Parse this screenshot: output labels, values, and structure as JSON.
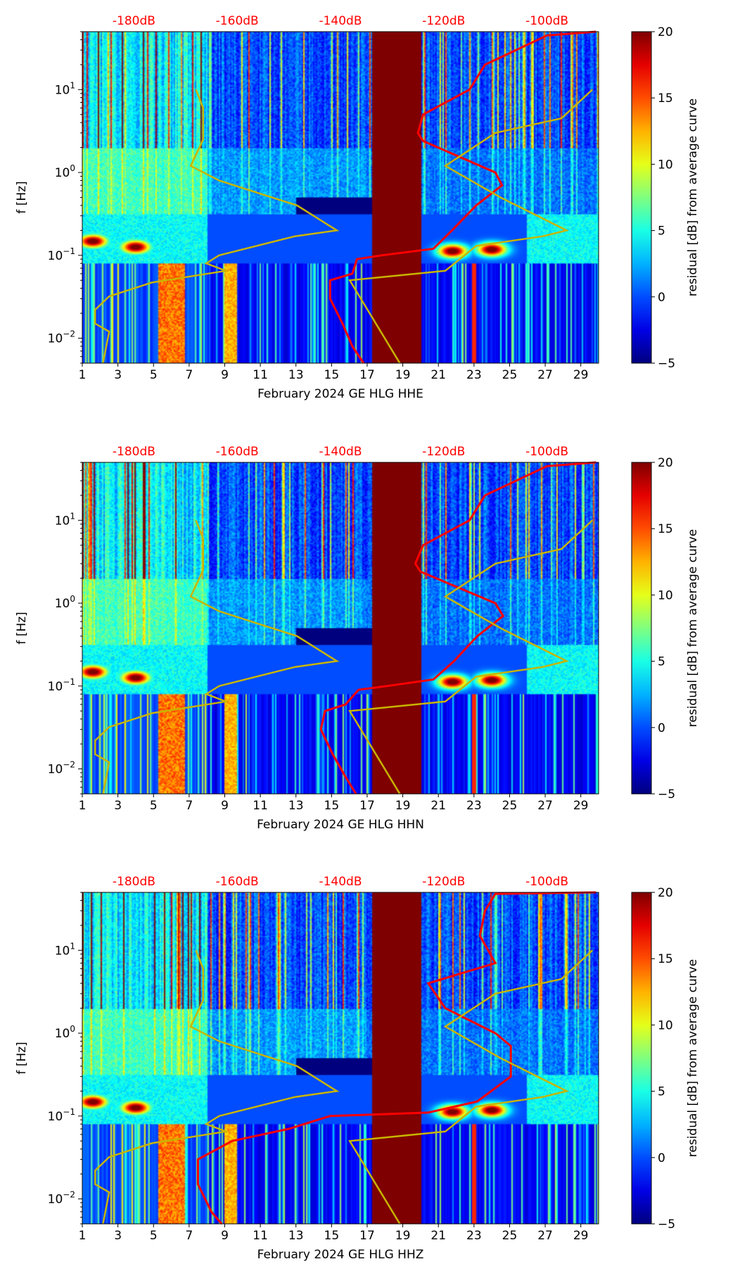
{
  "chart_data": [
    {
      "type": "heatmap",
      "title": "",
      "xlabel": "February 2024 GE HLG  HHE",
      "ylabel": "f [Hz]",
      "colorbar_label": "residual [dB] from average curve",
      "xlim": [
        1,
        30
      ],
      "ylim": [
        0.005,
        50
      ],
      "yscale": "log",
      "clim": [
        -5,
        20
      ],
      "colormap": "jet",
      "xticks": [
        "1",
        "3",
        "5",
        "7",
        "9",
        "11",
        "13",
        "15",
        "17",
        "19",
        "21",
        "23",
        "25",
        "27",
        "29"
      ],
      "yticks": [
        "10^-2",
        "10^-1",
        "10^0",
        "10^1"
      ],
      "colorbar_ticks": [
        "-5",
        "0",
        "5",
        "10",
        "15",
        "20"
      ],
      "top_axis": {
        "range": [
          -190,
          -90
        ],
        "ticks": [
          "-180dB",
          "-160dB",
          "-140dB",
          "-120dB",
          "-100dB"
        ],
        "color": "#ff0000"
      },
      "data_gap_days": [
        17.3,
        20.05
      ],
      "series": [
        {
          "name": "station PSD",
          "color": "#ff0000",
          "f": [
            0.005,
            0.008,
            0.015,
            0.03,
            0.05,
            0.06,
            0.09,
            0.1,
            0.12,
            0.2,
            0.4,
            0.7,
            1,
            2.4,
            3,
            5,
            10,
            20,
            45,
            50
          ],
          "dB": [
            -135.5,
            -137.7,
            -139.6,
            -142,
            -142,
            -137.7,
            -136.8,
            -132,
            -122,
            -118.4,
            -113.7,
            -108.7,
            -110,
            -124,
            -125,
            -124,
            -115,
            -112,
            -100,
            -90.5
          ]
        },
        {
          "name": "low noise model",
          "color": "#c8b400",
          "f": [
            0.005,
            0.012,
            0.015,
            0.022,
            0.032,
            0.047,
            0.065,
            0.08,
            0.1,
            0.17,
            0.2,
            0.4,
            0.8,
            1.2,
            2.5,
            6,
            10
          ],
          "dB": [
            -186,
            -184.8,
            -187.5,
            -187.5,
            -184.8,
            -176.5,
            -162.2,
            -166,
            -163.5,
            -148.8,
            -140.7,
            -148.4,
            -163.5,
            -169,
            -166.6,
            -166.6,
            -168
          ]
        },
        {
          "name": "high noise model",
          "color": "#c8b400",
          "f": [
            0.005,
            0.05,
            0.065,
            0.13,
            0.17,
            0.2,
            0.5,
            1.2,
            3,
            4.5,
            10
          ],
          "dB": [
            -128.5,
            -138.2,
            -119.7,
            -113.7,
            -100.8,
            -96.2,
            -109,
            -119.7,
            -110,
            -97.2,
            -91.2
          ]
        }
      ]
    },
    {
      "type": "heatmap",
      "title": "",
      "xlabel": "February 2024 GE HLG  HHN",
      "ylabel": "f [Hz]",
      "colorbar_label": "residual [dB] from average curve",
      "xlim": [
        1,
        30
      ],
      "ylim": [
        0.005,
        50
      ],
      "yscale": "log",
      "clim": [
        -5,
        20
      ],
      "colormap": "jet",
      "xticks": [
        "1",
        "3",
        "5",
        "7",
        "9",
        "11",
        "13",
        "15",
        "17",
        "19",
        "21",
        "23",
        "25",
        "27",
        "29"
      ],
      "yticks": [
        "10^-2",
        "10^-1",
        "10^0",
        "10^1"
      ],
      "colorbar_ticks": [
        "-5",
        "0",
        "5",
        "10",
        "15",
        "20"
      ],
      "top_axis": {
        "range": [
          -190,
          -90
        ],
        "ticks": [
          "-180dB",
          "-160dB",
          "-140dB",
          "-120dB",
          "-100dB"
        ],
        "color": "#ff0000"
      },
      "data_gap_days": [
        17.3,
        20.05
      ],
      "series": [
        {
          "name": "station PSD",
          "color": "#ff0000",
          "f": [
            0.005,
            0.008,
            0.015,
            0.03,
            0.05,
            0.06,
            0.09,
            0.1,
            0.12,
            0.2,
            0.4,
            0.7,
            1,
            2.4,
            3,
            5,
            10,
            20,
            45,
            50
          ],
          "dB": [
            -137,
            -139,
            -141.5,
            -143.8,
            -143,
            -139,
            -136.5,
            -131,
            -122,
            -118,
            -113.5,
            -108.5,
            -110,
            -124.5,
            -125.5,
            -124,
            -115,
            -112,
            -100,
            -90.5
          ]
        },
        {
          "name": "low noise model",
          "color": "#c8b400",
          "f": [
            0.005,
            0.012,
            0.015,
            0.022,
            0.032,
            0.047,
            0.065,
            0.08,
            0.1,
            0.17,
            0.2,
            0.4,
            0.8,
            1.2,
            2.5,
            6,
            10
          ],
          "dB": [
            -186,
            -184.8,
            -187.5,
            -187.5,
            -184.8,
            -176.5,
            -162.2,
            -166,
            -163.5,
            -148.8,
            -140.7,
            -148.4,
            -163.5,
            -169,
            -166.6,
            -166.6,
            -168
          ]
        },
        {
          "name": "high noise model",
          "color": "#c8b400",
          "f": [
            0.005,
            0.05,
            0.065,
            0.13,
            0.17,
            0.2,
            0.5,
            1.2,
            3,
            4.5,
            10
          ],
          "dB": [
            -128.5,
            -138.2,
            -119.7,
            -113.7,
            -100.8,
            -96.2,
            -109,
            -119.7,
            -110,
            -97.2,
            -91.2
          ]
        }
      ]
    },
    {
      "type": "heatmap",
      "title": "",
      "xlabel": "February 2024 GE HLG  HHZ",
      "ylabel": "f [Hz]",
      "colorbar_label": "residual [dB] from average curve",
      "xlim": [
        1,
        30
      ],
      "ylim": [
        0.005,
        50
      ],
      "yscale": "log",
      "clim": [
        -5,
        20
      ],
      "colormap": "jet",
      "xticks": [
        "1",
        "3",
        "5",
        "7",
        "9",
        "11",
        "13",
        "15",
        "17",
        "19",
        "21",
        "23",
        "25",
        "27",
        "29"
      ],
      "yticks": [
        "10^-2",
        "10^-1",
        "10^0",
        "10^1"
      ],
      "colorbar_ticks": [
        "-5",
        "0",
        "5",
        "10",
        "15",
        "20"
      ],
      "top_axis": {
        "range": [
          -190,
          -90
        ],
        "ticks": [
          "-180dB",
          "-160dB",
          "-140dB",
          "-120dB",
          "-100dB"
        ],
        "color": "#ff0000"
      },
      "data_gap_days": [
        17.3,
        20.05
      ],
      "series": [
        {
          "name": "station PSD",
          "color": "#ff0000",
          "f": [
            0.005,
            0.007,
            0.015,
            0.03,
            0.05,
            0.07,
            0.1,
            0.11,
            0.15,
            0.3,
            0.7,
            1,
            2,
            4,
            7,
            15,
            30,
            48,
            50
          ],
          "dB": [
            -163,
            -165,
            -167.6,
            -167.6,
            -161,
            -150,
            -142,
            -123,
            -113.5,
            -107,
            -107,
            -110,
            -119.7,
            -123,
            -110,
            -113,
            -112,
            -110,
            -90.5
          ]
        },
        {
          "name": "low noise model",
          "color": "#c8b400",
          "f": [
            0.005,
            0.012,
            0.015,
            0.022,
            0.032,
            0.047,
            0.065,
            0.08,
            0.1,
            0.17,
            0.2,
            0.4,
            0.8,
            1.2,
            2.5,
            6,
            10
          ],
          "dB": [
            -186,
            -184.8,
            -187.5,
            -187.5,
            -184.8,
            -176.5,
            -162.2,
            -166,
            -163.5,
            -148.8,
            -140.7,
            -148.4,
            -163.5,
            -169,
            -166.6,
            -166.6,
            -168
          ]
        },
        {
          "name": "high noise model",
          "color": "#c8b400",
          "f": [
            0.005,
            0.05,
            0.065,
            0.13,
            0.17,
            0.2,
            0.5,
            1.2,
            3,
            4.5,
            10
          ],
          "dB": [
            -128.5,
            -138.2,
            -119.7,
            -113.7,
            -100.8,
            -96.2,
            -109,
            -119.7,
            -110,
            -97.2,
            -91.2
          ]
        }
      ]
    }
  ]
}
